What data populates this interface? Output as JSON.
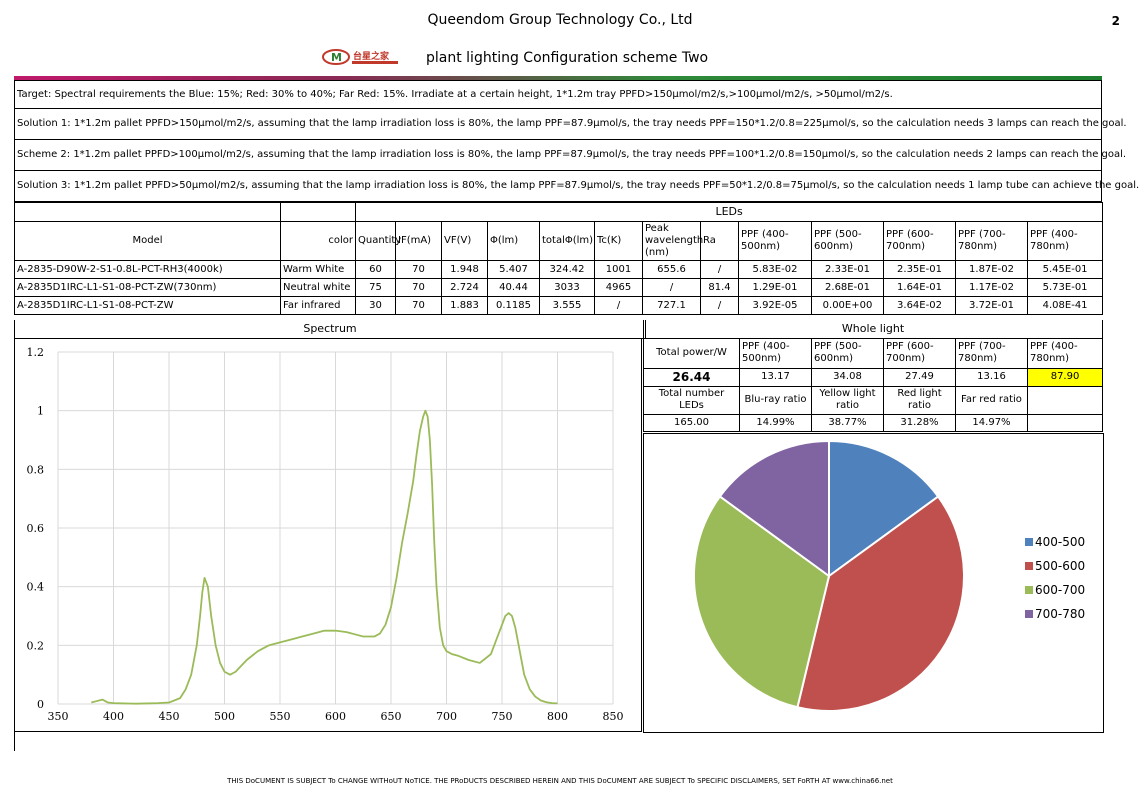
{
  "header": {
    "company": "Queendom Group Technology Co., Ltd",
    "title": "plant lighting Configuration scheme Two",
    "page_number": "2",
    "logo_text": "台星之家"
  },
  "notes": [
    "Target: Spectral requirements the Blue: 15%; Red: 30% to 40%; Far Red: 15%. Irradiate at a certain height, 1*1.2m tray PPFD>150μmol/m2/s,>100μmol/m2/s, >50μmol/m2/s.",
    "Solution 1: 1*1.2m pallet PPFD>150μmol/m2/s, assuming that the lamp irradiation loss is 80%, the lamp PPF=87.9μmol/s, the tray needs PPF=150*1.2/0.8=225μmol/s, so the calculation needs 3 lamps can reach the goal.",
    "Scheme 2: 1*1.2m pallet PPFD>100μmol/m2/s, assuming that the lamp irradiation loss is 80%, the lamp PPF=87.9μmol/s, the tray needs PPF=100*1.2/0.8=150μmol/s, so the calculation needs 2 lamps can reach the goal.",
    "Solution 3: 1*1.2m pallet PPFD>50μmol/m2/s, assuming that the lamp irradiation loss is 80%, the lamp PPF=87.9μmol/s, the tray needs PPF=50*1.2/0.8=75μmol/s, so the calculation needs 1 lamp tube can achieve the goal."
  ],
  "leds": {
    "group_label": "LEDs",
    "headers": [
      "Model",
      "color",
      "Quantity",
      "IF(mA)",
      "VF(V)",
      "Φ(lm)",
      "totalΦ(lm)",
      "Tc(K)",
      "Peak wavelength (nm)",
      "Ra",
      "PPF (400-500nm)",
      "PPF (500-600nm)",
      "PPF (600-700nm)",
      "PPF (700-780nm)",
      "PPF (400-780nm)"
    ],
    "rows": [
      [
        "A-2835-D90W-2-S1-0.8L-PCT-RH3(4000k)",
        "Warm White",
        "60",
        "70",
        "1.948",
        "5.407",
        "324.42",
        "1001",
        "655.6",
        "/",
        "5.83E-02",
        "2.33E-01",
        "2.35E-01",
        "1.87E-02",
        "5.45E-01"
      ],
      [
        "A-2835D1IRC-L1-S1-08-PCT-ZW(730nm)",
        "Neutral white",
        "75",
        "70",
        "2.724",
        "40.44",
        "3033",
        "4965",
        "/",
        "81.4",
        "1.29E-01",
        "2.68E-01",
        "1.64E-01",
        "1.17E-02",
        "5.73E-01"
      ],
      [
        "A-2835D1IRC-L1-S1-08-PCT-ZW",
        "Far infrared",
        "30",
        "70",
        "1.883",
        "0.1185",
        "3.555",
        "/",
        "727.1",
        "/",
        "3.92E-05",
        "0.00E+00",
        "3.64E-02",
        "3.72E-01",
        "4.08E-41"
      ]
    ]
  },
  "spectrum_label": "Spectrum",
  "whole_light": {
    "label": "Whole light",
    "headers": [
      "Total power/W",
      "PPF (400-500nm)",
      "PPF (500-600nm)",
      "PPF (600-700nm)",
      "PPF (700-780nm)",
      "PPF (400-780nm)"
    ],
    "values": [
      "26.44",
      "13.17",
      "34.08",
      "27.49",
      "13.16",
      "87.90"
    ],
    "ratio_headers": [
      "Total number LEDs",
      "Blu-ray ratio",
      "Yellow light ratio",
      "Red light ratio",
      "Far red ratio",
      ""
    ],
    "ratio_values": [
      "165.00",
      "14.99%",
      "38.77%",
      "31.28%",
      "14.97%",
      ""
    ]
  },
  "chart_data": [
    {
      "type": "line",
      "x_ticks": [
        350,
        400,
        450,
        500,
        550,
        600,
        650,
        700,
        750,
        800,
        850
      ],
      "y_ticks": [
        "0",
        "0.2",
        "0.4",
        "0.6",
        "0.8",
        "1",
        "1.2"
      ],
      "xlim": [
        350,
        850
      ],
      "ylim": [
        0,
        1.2
      ],
      "color": "#9bbb59",
      "x": [
        380,
        385,
        390,
        395,
        400,
        410,
        420,
        430,
        440,
        450,
        460,
        465,
        470,
        475,
        478,
        480,
        482,
        485,
        488,
        492,
        496,
        500,
        505,
        510,
        515,
        520,
        530,
        540,
        550,
        560,
        570,
        580,
        590,
        600,
        610,
        620,
        625,
        630,
        635,
        640,
        645,
        650,
        655,
        660,
        665,
        670,
        673,
        676,
        679,
        681,
        683,
        685,
        687,
        689,
        691,
        694,
        697,
        700,
        705,
        710,
        720,
        730,
        740,
        745,
        750,
        753,
        756,
        759,
        762,
        766,
        770,
        775,
        780,
        785,
        790,
        795,
        800
      ],
      "y": [
        0.005,
        0.01,
        0.015,
        0.005,
        0.003,
        0.002,
        0.001,
        0.002,
        0.003,
        0.005,
        0.02,
        0.05,
        0.1,
        0.2,
        0.3,
        0.38,
        0.43,
        0.4,
        0.3,
        0.2,
        0.14,
        0.11,
        0.1,
        0.11,
        0.13,
        0.15,
        0.18,
        0.2,
        0.21,
        0.22,
        0.23,
        0.24,
        0.25,
        0.25,
        0.245,
        0.235,
        0.23,
        0.23,
        0.23,
        0.24,
        0.27,
        0.33,
        0.43,
        0.55,
        0.65,
        0.76,
        0.85,
        0.93,
        0.98,
        1.0,
        0.98,
        0.9,
        0.75,
        0.55,
        0.4,
        0.26,
        0.2,
        0.18,
        0.17,
        0.165,
        0.15,
        0.14,
        0.17,
        0.22,
        0.27,
        0.3,
        0.31,
        0.3,
        0.26,
        0.18,
        0.1,
        0.05,
        0.025,
        0.012,
        0.006,
        0.003,
        0.002
      ]
    },
    {
      "type": "pie",
      "categories": [
        "400-500",
        "500-600",
        "600-700",
        "700-780"
      ],
      "values": [
        13.17,
        34.08,
        27.49,
        13.16
      ],
      "colors": [
        "#4f81bd",
        "#c0504d",
        "#9bbb59",
        "#8064a2"
      ]
    }
  ],
  "footer": "THIS DoCUMENT IS SUBJECT To CHANGE WITHoUT NoTICE. THE PRoDUCTS DESCRIBED HEREIN AND THIS DoCUMENT ARE SUBJECT To SPECIFIC DISCLAIMERS, SET FoRTH AT www.china66.net"
}
